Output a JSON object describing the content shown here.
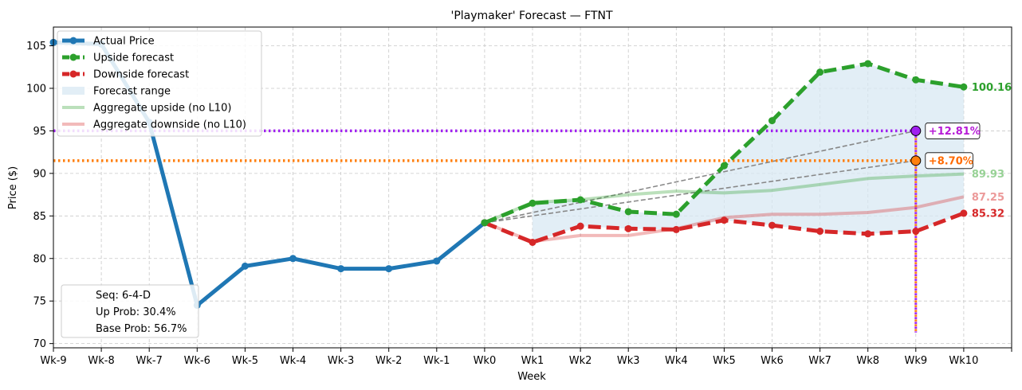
{
  "chart_data": {
    "type": "line",
    "title": "'Playmaker' Forecast — FTNT",
    "xlabel": "Week",
    "ylabel": "Price ($)",
    "categories": [
      "Wk-9",
      "Wk-8",
      "Wk-7",
      "Wk-6",
      "Wk-5",
      "Wk-4",
      "Wk-3",
      "Wk-2",
      "Wk-1",
      "Wk0",
      "Wk1",
      "Wk2",
      "Wk3",
      "Wk4",
      "Wk5",
      "Wk6",
      "Wk7",
      "Wk8",
      "Wk9",
      "Wk10"
    ],
    "xlim": [
      -9,
      11
    ],
    "ylim": [
      69.5,
      107.2
    ],
    "yticks": [
      70,
      75,
      80,
      85,
      90,
      95,
      100,
      105
    ],
    "grid": true,
    "legend_position": "upper-left",
    "series": [
      {
        "name": "Actual Price",
        "color": "#1f77b4",
        "x": [
          -9,
          -8,
          -7,
          -6,
          -5,
          -4,
          -3,
          -2,
          -1,
          0
        ],
        "values": [
          105.4,
          105.2,
          96.0,
          74.5,
          79.1,
          80.0,
          78.8,
          78.8,
          79.7,
          84.2
        ]
      },
      {
        "name": "Upside forecast",
        "color": "#2ca02c",
        "x": [
          0,
          1,
          2,
          3,
          4,
          5,
          6,
          7,
          8,
          9,
          10
        ],
        "values": [
          84.2,
          86.5,
          86.9,
          85.5,
          85.2,
          90.9,
          96.2,
          101.9,
          102.9,
          101.0,
          100.16
        ]
      },
      {
        "name": "Downside forecast",
        "color": "#d62728",
        "x": [
          0,
          1,
          2,
          3,
          4,
          5,
          6,
          7,
          8,
          9,
          10
        ],
        "values": [
          84.2,
          81.9,
          83.8,
          83.5,
          83.4,
          84.5,
          83.9,
          83.2,
          82.9,
          83.2,
          85.32
        ]
      },
      {
        "name": "Forecast range",
        "color": "#d8e8f3"
      },
      {
        "name": "Aggregate upside (no L10)",
        "color": "#2ca02c",
        "x": [
          0,
          1,
          2,
          3,
          4,
          5,
          6,
          7,
          8,
          9,
          10
        ],
        "values": [
          84.2,
          86.6,
          86.9,
          87.5,
          87.9,
          87.7,
          88.0,
          88.7,
          89.4,
          89.7,
          89.93
        ]
      },
      {
        "name": "Aggregate downside (no L10)",
        "color": "#d62728",
        "x": [
          0,
          1,
          2,
          3,
          4,
          5,
          6,
          7,
          8,
          9,
          10
        ],
        "values": [
          84.2,
          82.0,
          82.7,
          82.7,
          83.5,
          84.8,
          85.2,
          85.2,
          85.4,
          86.0,
          87.25
        ]
      }
    ],
    "end_labels": [
      {
        "text": "100.16",
        "y": 100.16,
        "color": "#2ca02c"
      },
      {
        "text": "89.93",
        "y": 89.93,
        "color": "#98d296"
      },
      {
        "text": "87.25",
        "y": 87.25,
        "color": "#ec9a9a"
      },
      {
        "text": "85.32",
        "y": 85.32,
        "color": "#d62728"
      }
    ],
    "targets": [
      {
        "text": "+12.81%",
        "y": 95.0,
        "x": 9,
        "color": "#b61bd6",
        "fill": "#a020f0"
      },
      {
        "text": "+8.70%",
        "y": 91.5,
        "x": 9,
        "color": "#ff6a00",
        "fill": "#ff7f0e"
      }
    ],
    "vertical_marker": {
      "x": 9,
      "y_from": 95.0,
      "y_to": 71.3
    },
    "trend_lines": [
      {
        "x": [
          0,
          9
        ],
        "y": [
          84.2,
          95.0
        ]
      },
      {
        "x": [
          0,
          9
        ],
        "y": [
          84.2,
          91.5
        ]
      }
    ],
    "stats": [
      "Seq: 6-4-D",
      "Up Prob: 30.4%",
      "Base Prob: 56.7%"
    ]
  }
}
